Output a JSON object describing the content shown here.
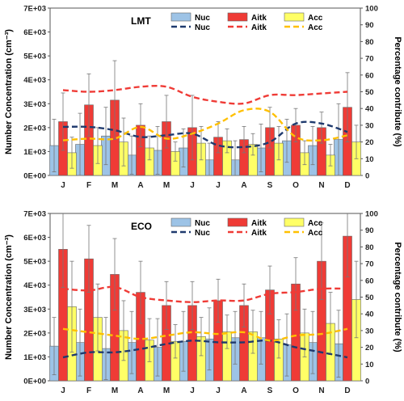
{
  "chart_data": [
    {
      "type": "bar",
      "title": "LMT",
      "ylabel": "Number Concentration (cm⁻³)",
      "y2label": "Percentage contribute (%)",
      "ylim": [
        0,
        7000
      ],
      "y2lim": [
        0,
        100
      ],
      "yticks": [
        "0E+00",
        "1E+03",
        "2E+03",
        "3E+03",
        "4E+03",
        "5E+03",
        "6E+03",
        "7E+03"
      ],
      "y2ticks": [
        "0",
        "10",
        "20",
        "30",
        "40",
        "50",
        "60",
        "70",
        "80",
        "90",
        "100"
      ],
      "categories": [
        "J",
        "F",
        "M",
        "A",
        "M",
        "J",
        "J",
        "A",
        "S",
        "O",
        "N",
        "D"
      ],
      "bar_series": [
        {
          "name": "Nuc",
          "color": "#9dc3e6",
          "values": [
            1250,
            1300,
            1650,
            850,
            1050,
            1150,
            650,
            650,
            1150,
            1450,
            1250,
            1500
          ],
          "errors": [
            1100,
            1300,
            1200,
            800,
            1000,
            800,
            700,
            800,
            1000,
            900,
            800,
            1500
          ]
        },
        {
          "name": "Aitk",
          "color": "#ef3b36",
          "values": [
            2250,
            2950,
            3150,
            2100,
            2250,
            2000,
            1600,
            1500,
            2000,
            2100,
            2000,
            2850
          ],
          "errors": [
            1200,
            1300,
            1650,
            900,
            1100,
            1350,
            650,
            550,
            850,
            700,
            650,
            1450
          ]
        },
        {
          "name": "Acc",
          "color": "#ffff66",
          "values": [
            950,
            1250,
            1400,
            1150,
            1000,
            1350,
            1450,
            1300,
            1350,
            950,
            850,
            1400
          ],
          "errors": [
            650,
            750,
            1000,
            500,
            400,
            700,
            500,
            450,
            700,
            500,
            450,
            700
          ]
        }
      ],
      "line_series": [
        {
          "name": "Nuc",
          "color": "#1f3a6e",
          "values": [
            29,
            29,
            27,
            23,
            24,
            25,
            18,
            17,
            20,
            31,
            31,
            26
          ]
        },
        {
          "name": "Aitk",
          "color": "#ef3b36",
          "values": [
            51,
            50,
            51,
            53,
            53,
            47,
            44,
            43,
            48,
            48,
            49,
            50
          ]
        },
        {
          "name": "Acc",
          "color": "#ffc000",
          "values": [
            21,
            22,
            22,
            29,
            22,
            25,
            31,
            39,
            38,
            23,
            21,
            24
          ]
        }
      ],
      "legend": "top"
    },
    {
      "type": "bar",
      "title": "ECO",
      "ylabel": "Number Concentration (cm⁻³)",
      "y2label": "Percentage contribute (%)",
      "ylim": [
        0,
        7000
      ],
      "y2lim": [
        0,
        100
      ],
      "yticks": [
        "0E+00",
        "1E+03",
        "2E+03",
        "3E+03",
        "4E+03",
        "5E+03",
        "6E+03",
        "7E+03"
      ],
      "y2ticks": [
        "0",
        "10",
        "20",
        "30",
        "40",
        "50",
        "60",
        "70",
        "80",
        "90",
        "100"
      ],
      "categories": [
        "J",
        "F",
        "M",
        "A",
        "M",
        "J",
        "J",
        "A",
        "S",
        "O",
        "N",
        "D"
      ],
      "bar_series": [
        {
          "name": "Nuc",
          "color": "#9dc3e6",
          "values": [
            1450,
            1600,
            1350,
            1600,
            1400,
            1650,
            1750,
            1800,
            1800,
            1500,
            1600,
            1550
          ],
          "errors": [
            1200,
            1400,
            1300,
            1300,
            1200,
            1250,
            1300,
            1100,
            1100,
            1300,
            1300,
            1400
          ]
        },
        {
          "name": "Aitk",
          "color": "#ef3b36",
          "values": [
            5500,
            5100,
            4450,
            3700,
            3150,
            3150,
            3350,
            3150,
            3800,
            4050,
            5000,
            6050
          ]
        },
        {
          "name": "Acc",
          "color": "#ffff66",
          "values": [
            3100,
            2650,
            2100,
            1700,
            1650,
            1850,
            2050,
            2050,
            1750,
            2000,
            2400,
            3400
          ],
          "errors": [
            1900,
            1400,
            1250,
            900,
            700,
            800,
            700,
            900,
            800,
            1000,
            1300,
            1600
          ]
        }
      ],
      "aitk_errors": [
        1600,
        1400,
        1500,
        1300,
        1000,
        1000,
        900,
        900,
        1000,
        1100,
        1600,
        1700
      ],
      "line_series": [
        {
          "name": "Nuc",
          "color": "#1f3a6e",
          "values": [
            14,
            17,
            17,
            19,
            22,
            24,
            23,
            23,
            24,
            20,
            17,
            14
          ]
        },
        {
          "name": "Aitk",
          "color": "#ef3b36",
          "values": [
            55,
            54,
            56,
            50,
            48,
            47,
            48,
            48,
            52,
            53,
            55,
            55
          ]
        },
        {
          "name": "Acc",
          "color": "#ffc000",
          "values": [
            31,
            29,
            27,
            25,
            27,
            29,
            28,
            29,
            24,
            27,
            28,
            31
          ]
        }
      ],
      "legend": "top"
    }
  ]
}
